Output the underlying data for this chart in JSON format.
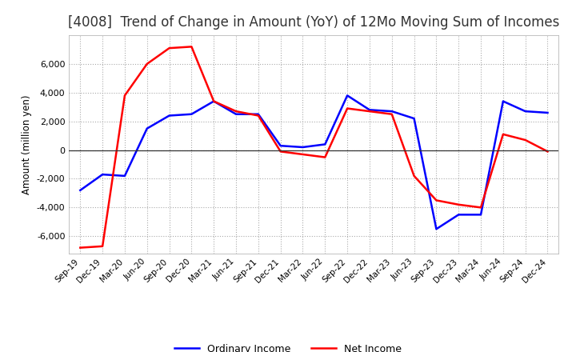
{
  "title": "[4008]  Trend of Change in Amount (YoY) of 12Mo Moving Sum of Incomes",
  "ylabel": "Amount (million yen)",
  "ylim": [
    -7200,
    8000
  ],
  "yticks": [
    -6000,
    -4000,
    -2000,
    0,
    2000,
    4000,
    6000
  ],
  "x_labels": [
    "Sep-19",
    "Dec-19",
    "Mar-20",
    "Jun-20",
    "Sep-20",
    "Dec-20",
    "Mar-21",
    "Jun-21",
    "Sep-21",
    "Dec-21",
    "Mar-22",
    "Jun-22",
    "Sep-22",
    "Dec-22",
    "Mar-23",
    "Jun-23",
    "Sep-23",
    "Dec-23",
    "Mar-24",
    "Jun-24",
    "Sep-24",
    "Dec-24"
  ],
  "ordinary_income": [
    -2800,
    -1700,
    -1800,
    1500,
    2400,
    2500,
    3400,
    2500,
    2500,
    300,
    200,
    400,
    3800,
    2800,
    2700,
    2200,
    -5500,
    -4500,
    -4500,
    3400,
    2700,
    2600
  ],
  "net_income": [
    -6800,
    -6700,
    3800,
    6000,
    7100,
    7200,
    3400,
    2700,
    2400,
    -100,
    -300,
    -500,
    2900,
    2700,
    2500,
    -1800,
    -3500,
    -3800,
    -4000,
    1100,
    700,
    -100
  ],
  "ordinary_color": "#0000ff",
  "net_color": "#ff0000",
  "background_color": "#ffffff",
  "grid_color": "#aaaaaa",
  "title_fontsize": 12,
  "legend_ordinary": "Ordinary Income",
  "legend_net": "Net Income"
}
